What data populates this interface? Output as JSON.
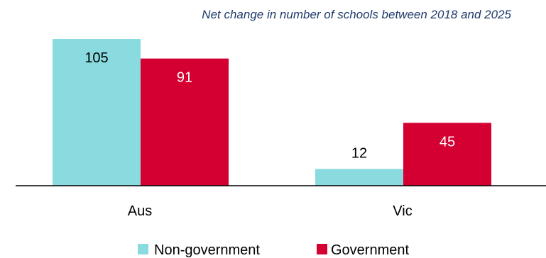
{
  "chart_data": {
    "type": "bar",
    "title": "Net change in number of schools between 2018 and 2025",
    "categories": [
      "Aus",
      "Vic"
    ],
    "series": [
      {
        "name": "Non-government",
        "values": [
          105,
          12
        ],
        "color": "#8adbdf",
        "label_color": "#000000"
      },
      {
        "name": "Government",
        "values": [
          91,
          45
        ],
        "color": "#d50032",
        "label_color": "#ffffff"
      }
    ],
    "ylim": [
      0,
      105
    ],
    "grid": false,
    "legend_position": "bottom-center",
    "axis_color": "#000000"
  }
}
